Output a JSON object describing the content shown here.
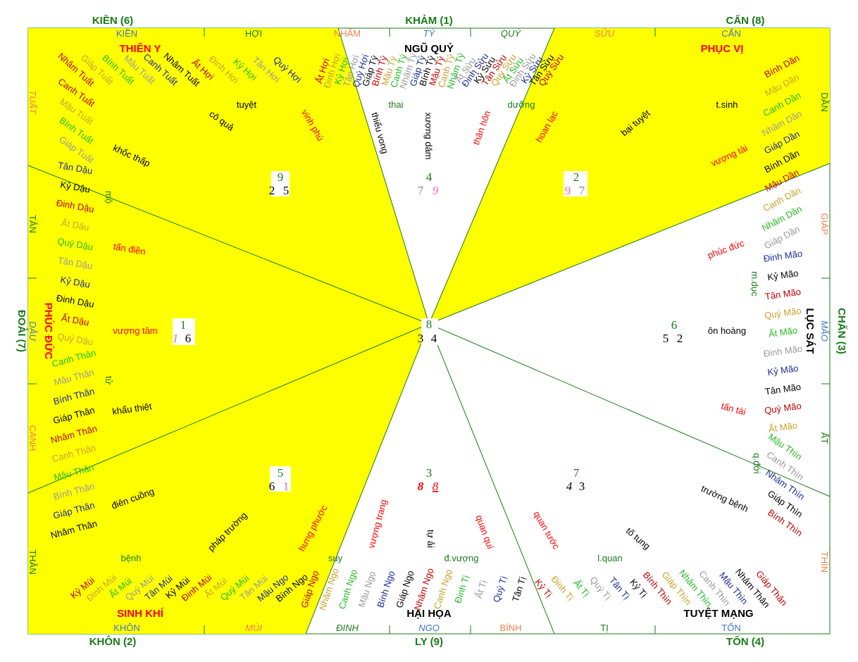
{
  "colors": {
    "yellow": "#ffff00",
    "green": "#1a7a1a",
    "red": "#ff0000",
    "darkred": "#c00000",
    "blue": "#4472c4",
    "orange": "#f08050",
    "gray": "#999999",
    "gold": "#c9a227",
    "lime": "#22bb22",
    "navy": "#1a2a9a",
    "pink": "#ee66bb",
    "black": "#000000"
  },
  "sectors": {
    "n": "KHẢM (1)",
    "ne": "CẤN (8)",
    "e": "CHẤN (3)",
    "se": "TỐN (4)",
    "s": "LY (9)",
    "sw": "KHÔN (2)",
    "w": "ĐOÀI (7)",
    "nw": "KIỀN (6)"
  },
  "edge_labels": {
    "top": [
      {
        "t": "KIỀN",
        "c": "blue"
      },
      {
        "t": "HỢI",
        "c": "green"
      },
      {
        "t": "NHÂM",
        "c": "orange"
      },
      {
        "t": "TÝ",
        "c": "blue"
      },
      {
        "t": "QUÝ",
        "c": "green"
      },
      {
        "t": "SỬU",
        "c": "orange"
      },
      {
        "t": "CẤN",
        "c": "blue"
      }
    ],
    "right": [
      {
        "t": "DẦN",
        "c": "green"
      },
      {
        "t": "GIÁP",
        "c": "orange"
      },
      {
        "t": "MÃO",
        "c": "blue"
      },
      {
        "t": "ẤT",
        "c": "green"
      },
      {
        "t": "THÌN",
        "c": "orange"
      }
    ],
    "bottom": [
      {
        "t": "KHÔN",
        "c": "blue"
      },
      {
        "t": "MÙI",
        "c": "orange"
      },
      {
        "t": "ĐINH",
        "c": "green"
      },
      {
        "t": "NGỌ",
        "c": "blue"
      },
      {
        "t": "BÍNH",
        "c": "orange"
      },
      {
        "t": "TỊ",
        "c": "green"
      },
      {
        "t": "TỐN",
        "c": "blue"
      }
    ],
    "left": [
      {
        "t": "TUẤT",
        "c": "orange"
      },
      {
        "t": "TÂN",
        "c": "green"
      },
      {
        "t": "DẬU",
        "c": "blue"
      },
      {
        "t": "CANH",
        "c": "orange"
      },
      {
        "t": "THÂN",
        "c": "green"
      }
    ]
  },
  "vnames": {
    "n": "NGŨ QUỶ",
    "ne": "PHỤC VỊ",
    "e": "LỤC SÁT",
    "se": "TUYỆT MẠNG",
    "s": "HẠI HỌA",
    "sw": "SINH KHÍ",
    "w": "PHÚC ĐỨC",
    "nw": "THIÊN Y"
  },
  "stars": {
    "center": {
      "top": "8",
      "l": "3",
      "r": "4"
    },
    "n": {
      "top": "4",
      "l": "7",
      "r": "9"
    },
    "ne": {
      "top": "2",
      "l": "9",
      "r": "7"
    },
    "e": {
      "top": "6",
      "l": "5",
      "r": "2"
    },
    "se": {
      "top": "7",
      "l": "4",
      "r": "3"
    },
    "s": {
      "top": "3",
      "l": "8",
      "r": "8"
    },
    "sw": {
      "top": "5",
      "l": "6",
      "r": "1"
    },
    "w": {
      "top": "1",
      "l": "1",
      "r": "6"
    },
    "nw": {
      "top": "9",
      "l": "2",
      "r": "5"
    }
  },
  "words": [
    {
      "t": "tuyệt"
    },
    {
      "t": "t.sinh"
    },
    {
      "t": "thai"
    },
    {
      "t": "dưỡng"
    },
    {
      "t": "cô quả"
    },
    {
      "t": "vinh phú"
    },
    {
      "t": "thiểu vong"
    },
    {
      "t": "xương dâm"
    },
    {
      "t": "thân hôn"
    },
    {
      "t": "hoan lạc"
    },
    {
      "t": "bại tuyệt"
    },
    {
      "t": "vượng tài"
    },
    {
      "t": "khốc thấp"
    },
    {
      "t": "phúc đức"
    },
    {
      "t": "m.dục"
    },
    {
      "t": "tấn điền"
    },
    {
      "t": "vượng tâm"
    },
    {
      "t": "ôn hoàng"
    },
    {
      "t": "khẩu thiệt"
    },
    {
      "t": "tấn tài"
    },
    {
      "t": "q.đới"
    },
    {
      "t": "điên cuồng"
    },
    {
      "t": "pháp trường"
    },
    {
      "t": "hưng phước"
    },
    {
      "t": "vượng trang"
    },
    {
      "t": "tự ải"
    },
    {
      "t": "quan quí"
    },
    {
      "t": "quan tước"
    },
    {
      "t": "tố tụng"
    },
    {
      "t": "trường bệnh"
    },
    {
      "t": "bệnh"
    },
    {
      "t": "suy"
    },
    {
      "t": "đ.vượng"
    },
    {
      "t": "l.quan"
    },
    {
      "t": "mộ"
    },
    {
      "t": "tử"
    }
  ],
  "ganzhi_top": [
    "Ất Hợi",
    "Đinh Hợi",
    "Kỷ Hợi",
    "Tân Hợi",
    "Quý Hợi",
    "Giáp Tý",
    "Bính Tý",
    "Mậu Tý",
    "Canh Tý",
    "Nhâm Tý",
    "Giáp Tý",
    "Bính Tý",
    "Mậu Tý",
    "Canh Tý",
    "Nhâm Tý",
    "Ất Sửu",
    "Đinh Sửu",
    "Kỷ Sửu",
    "Tân Sửu",
    "Quý Sửu",
    "Ất Sửu",
    "Đinh Sửu",
    "Kỷ Sửu",
    "Tân Sửu",
    "Quý Sửu"
  ],
  "ganzhi_nw": [
    "Nhâm Tuất",
    "Giáp Tuất",
    "Bính Tuất",
    "Mậu Tuất",
    "Canh Tuất",
    "Nhâm Tuất",
    "Ất Hợi",
    "Đinh Hợi",
    "Kỷ Hợi",
    "Tân Hợi",
    "Quý Hợi"
  ],
  "ganzhi_left": [
    "Canh Tuất",
    "Mậu Tuất",
    "Bính Tuất",
    "Giáp Tuất",
    "Tân Dậu",
    "Kỷ Dậu",
    "Đinh Dậu",
    "Ất Dậu",
    "Quý Dậu",
    "Tân Dậu",
    "Kỷ Dậu",
    "Đinh Dậu",
    "Ất Dậu",
    "Quý Dậu",
    "Canh Thân",
    "Mậu Thân",
    "Bính Thân",
    "Giáp Thân",
    "Nhâm Thân",
    "Canh Thân",
    "Mậu Thân",
    "Bính Thân",
    "Giáp Thân",
    "Nhâm Thân"
  ],
  "ganzhi_right": [
    "Bính Dần",
    "Mậu Dần",
    "Canh Dần",
    "Nhâm Dần",
    "Giáp Dần",
    "Bính Dần",
    "Mậu Dần",
    "Canh Dần",
    "Nhâm Dần",
    "Giáp Dần",
    "Đinh Mão",
    "Kỷ Mão",
    "Tân Mão",
    "Quý Mão",
    "Ất Mão",
    "Đinh Mão",
    "Kỷ Mão",
    "Tân Mão",
    "Quý Mão",
    "Ất Mão",
    "Mậu Thìn",
    "Canh Thìn",
    "Nhâm Thìn",
    "Giáp Thìn",
    "Bính Thìn"
  ],
  "ganzhi_bottom": [
    "Kỷ Mùi",
    "Đinh Mùi",
    "Ất Mùi",
    "Quý Mùi",
    "Tân Mùi",
    "Kỷ Mùi",
    "Đinh Mùi",
    "Ất Mùi",
    "Quý Mùi",
    "Tân Mùi",
    "Mậu Ngọ",
    "Bính Ngọ",
    "Giáp Ngọ",
    "Nhâm Ngọ",
    "Canh Ngọ",
    "Mậu Ngọ",
    "Bính Ngọ",
    "Giáp Ngọ",
    "Nhâm Ngọ",
    "Canh Ngọ",
    "Đinh Tị",
    "Ất Tị",
    "Quý Tị",
    "Tân Tị",
    "Kỷ Tị",
    "Đinh Tị",
    "Ất Tị",
    "Quý Tị",
    "Tân Tị",
    "Kỷ Tị",
    "Bính Thìn",
    "Giáp Thìn",
    "Nhâm Thìn",
    "Canh Thìn",
    "Mậu Thìn",
    "Nhâm Thân",
    "Giáp Thân"
  ]
}
